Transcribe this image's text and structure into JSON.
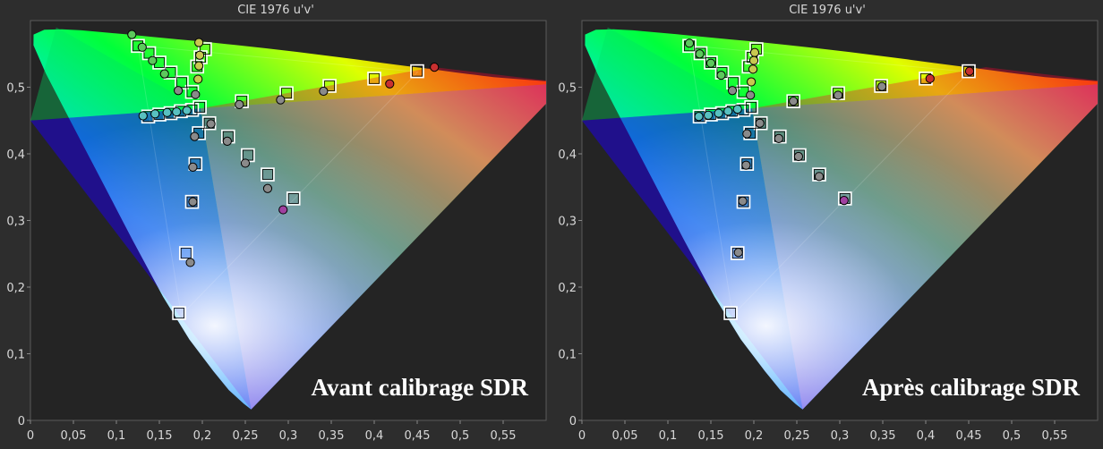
{
  "chart_data": [
    {
      "type": "scatter",
      "title": "CIE 1976 u'v'",
      "overlay_text": "Avant calibrage SDR",
      "xlabel": "",
      "ylabel": "",
      "xlim": [
        0,
        0.6
      ],
      "ylim": [
        0,
        0.6
      ],
      "x_ticks": [
        "0",
        "0,05",
        "0,1",
        "0,15",
        "0,2",
        "0,25",
        "0,3",
        "0,35",
        "0,4",
        "0,45",
        "0,5",
        "0,55"
      ],
      "y_ticks": [
        "0",
        "0,1",
        "0,2",
        "0,3",
        "0,4",
        "0,5"
      ],
      "grid": false,
      "series": [
        {
          "marker": "square",
          "points": [
            [
              0.125,
              0.562
            ],
            [
              0.138,
              0.551
            ],
            [
              0.15,
              0.537
            ],
            [
              0.163,
              0.522
            ],
            [
              0.176,
              0.507
            ],
            [
              0.188,
              0.493
            ],
            [
              0.194,
              0.531
            ],
            [
              0.198,
              0.545
            ],
            [
              0.203,
              0.557
            ],
            [
              0.197,
              0.47
            ],
            [
              0.137,
              0.456
            ],
            [
              0.15,
              0.459
            ],
            [
              0.163,
              0.461
            ],
            [
              0.175,
              0.464
            ],
            [
              0.188,
              0.466
            ],
            [
              0.196,
              0.431
            ],
            [
              0.192,
              0.385
            ],
            [
              0.188,
              0.328
            ],
            [
              0.181,
              0.251
            ],
            [
              0.173,
              0.161
            ],
            [
              0.208,
              0.446
            ],
            [
              0.23,
              0.426
            ],
            [
              0.253,
              0.398
            ],
            [
              0.276,
              0.369
            ],
            [
              0.306,
              0.333
            ],
            [
              0.246,
              0.479
            ],
            [
              0.298,
              0.491
            ],
            [
              0.348,
              0.502
            ],
            [
              0.4,
              0.513
            ],
            [
              0.45,
              0.524
            ]
          ]
        },
        {
          "marker": "circle",
          "points": [
            [
              0.118,
              0.579
            ],
            [
              0.13,
              0.56
            ],
            [
              0.142,
              0.54
            ],
            [
              0.156,
              0.52
            ],
            [
              0.172,
              0.495
            ],
            [
              0.196,
              0.567
            ],
            [
              0.197,
              0.548
            ],
            [
              0.196,
              0.532
            ],
            [
              0.195,
              0.512
            ],
            [
              0.192,
              0.489
            ],
            [
              0.131,
              0.457
            ],
            [
              0.145,
              0.46
            ],
            [
              0.159,
              0.462
            ],
            [
              0.17,
              0.463
            ],
            [
              0.182,
              0.465
            ],
            [
              0.191,
              0.426
            ],
            [
              0.189,
              0.38
            ],
            [
              0.189,
              0.328
            ],
            [
              0.186,
              0.237
            ],
            [
              0.21,
              0.445
            ],
            [
              0.229,
              0.419
            ],
            [
              0.25,
              0.386
            ],
            [
              0.276,
              0.348
            ],
            [
              0.294,
              0.316
            ],
            [
              0.243,
              0.474
            ],
            [
              0.291,
              0.481
            ],
            [
              0.341,
              0.494
            ],
            [
              0.418,
              0.505
            ],
            [
              0.47,
              0.53
            ]
          ]
        }
      ]
    },
    {
      "type": "scatter",
      "title": "CIE 1976 u'v'",
      "overlay_text": "Après calibrage SDR",
      "xlabel": "",
      "ylabel": "",
      "xlim": [
        0,
        0.6
      ],
      "ylim": [
        0,
        0.6
      ],
      "x_ticks": [
        "0",
        "0,05",
        "0,1",
        "0,15",
        "0,2",
        "0,25",
        "0,3",
        "0,35",
        "0,4",
        "0,45",
        "0,5",
        "0,55"
      ],
      "y_ticks": [
        "0",
        "0,1",
        "0,2",
        "0,3",
        "0,4",
        "0,5"
      ],
      "grid": false,
      "series": [
        {
          "marker": "square",
          "points": [
            [
              0.125,
              0.562
            ],
            [
              0.138,
              0.551
            ],
            [
              0.15,
              0.537
            ],
            [
              0.163,
              0.522
            ],
            [
              0.176,
              0.507
            ],
            [
              0.188,
              0.493
            ],
            [
              0.194,
              0.531
            ],
            [
              0.198,
              0.545
            ],
            [
              0.203,
              0.557
            ],
            [
              0.197,
              0.47
            ],
            [
              0.137,
              0.456
            ],
            [
              0.15,
              0.459
            ],
            [
              0.163,
              0.461
            ],
            [
              0.175,
              0.464
            ],
            [
              0.188,
              0.466
            ],
            [
              0.196,
              0.431
            ],
            [
              0.192,
              0.385
            ],
            [
              0.188,
              0.328
            ],
            [
              0.181,
              0.251
            ],
            [
              0.173,
              0.161
            ],
            [
              0.208,
              0.446
            ],
            [
              0.23,
              0.426
            ],
            [
              0.253,
              0.398
            ],
            [
              0.276,
              0.369
            ],
            [
              0.306,
              0.333
            ],
            [
              0.246,
              0.479
            ],
            [
              0.298,
              0.491
            ],
            [
              0.348,
              0.502
            ],
            [
              0.4,
              0.513
            ],
            [
              0.45,
              0.524
            ]
          ]
        },
        {
          "marker": "circle",
          "points": [
            [
              0.125,
              0.566
            ],
            [
              0.137,
              0.55
            ],
            [
              0.15,
              0.536
            ],
            [
              0.162,
              0.518
            ],
            [
              0.175,
              0.495
            ],
            [
              0.201,
              0.552
            ],
            [
              0.2,
              0.54
            ],
            [
              0.199,
              0.527
            ],
            [
              0.197,
              0.508
            ],
            [
              0.196,
              0.488
            ],
            [
              0.136,
              0.456
            ],
            [
              0.147,
              0.458
            ],
            [
              0.159,
              0.461
            ],
            [
              0.17,
              0.464
            ],
            [
              0.181,
              0.467
            ],
            [
              0.192,
              0.43
            ],
            [
              0.191,
              0.383
            ],
            [
              0.187,
              0.329
            ],
            [
              0.182,
              0.252
            ],
            [
              0.207,
              0.446
            ],
            [
              0.229,
              0.423
            ],
            [
              0.252,
              0.396
            ],
            [
              0.276,
              0.366
            ],
            [
              0.305,
              0.33
            ],
            [
              0.246,
              0.479
            ],
            [
              0.298,
              0.488
            ],
            [
              0.349,
              0.501
            ],
            [
              0.405,
              0.513
            ],
            [
              0.451,
              0.524
            ]
          ]
        }
      ]
    }
  ]
}
